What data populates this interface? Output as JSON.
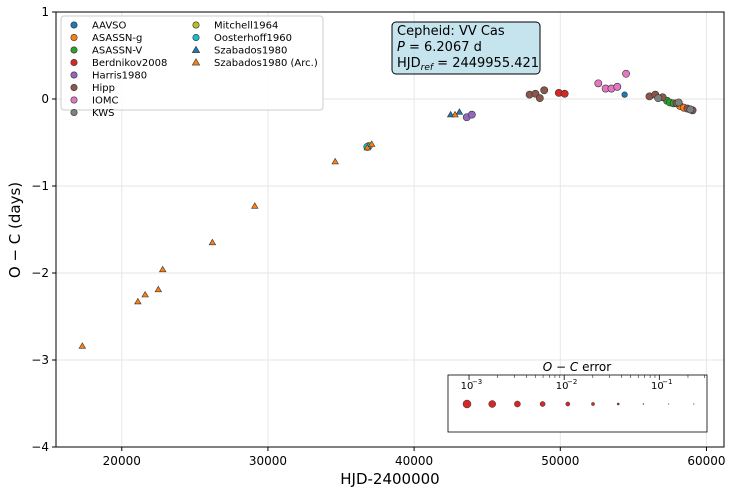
{
  "chart_data": {
    "type": "scatter",
    "xlabel": "HJD-2400000",
    "ylabel": "O − C (days)",
    "xlim": [
      15500,
      61200
    ],
    "ylim": [
      -4,
      1
    ],
    "x_ticks": [
      20000,
      30000,
      40000,
      50000,
      60000
    ],
    "y_ticks": [
      1,
      0,
      -1,
      -2,
      -3,
      -4
    ],
    "x_tick_labels": [
      "20000",
      "30000",
      "40000",
      "50000",
      "60000"
    ],
    "y_tick_labels": [
      "1",
      "0",
      "−1",
      "−2",
      "−3",
      "−4"
    ],
    "grid": true,
    "legend_position": "top-left",
    "info_box": {
      "line1": "Cepheid: VV Cas",
      "line2_prefix": "P",
      "line2_value": " = 6.2067 d",
      "line3_prefix": "HJD",
      "line3_sub": "ref",
      "line3_value": " = 2449955.421"
    },
    "error_legend": {
      "title_prefix": "O − C",
      "title_suffix": " error",
      "tick_labels": [
        "10",
        "10",
        "10"
      ],
      "tick_exponents": [
        "−3",
        "−2",
        "−1"
      ],
      "log_range": [
        -3.2,
        -0.52
      ],
      "tick_positions": [
        -3,
        -2,
        -1
      ],
      "sample_errors": [
        0.0007,
        0.0014,
        0.0028,
        0.0055,
        0.011,
        0.022,
        0.045,
        0.09,
        0.18,
        0.3
      ]
    },
    "series": [
      {
        "name": "AAVSO",
        "marker": "circle",
        "color": "#1f77b4",
        "points": [
          [
            54400,
            0.05
          ]
        ]
      },
      {
        "name": "ASASSN-g",
        "marker": "circle",
        "color": "#ff7f0e",
        "points": [
          [
            58200,
            -0.08
          ],
          [
            58450,
            -0.1
          ]
        ]
      },
      {
        "name": "ASASSN-V",
        "marker": "circle",
        "color": "#2ca02c",
        "points": [
          [
            57300,
            -0.02
          ],
          [
            57500,
            -0.04
          ],
          [
            57750,
            -0.05
          ]
        ]
      },
      {
        "name": "Berdnikov2008",
        "marker": "circle",
        "color": "#d62728",
        "points": [
          [
            49900,
            0.07
          ],
          [
            50300,
            0.06
          ]
        ]
      },
      {
        "name": "Harris1980",
        "marker": "circle",
        "color": "#9467bd",
        "points": [
          [
            43600,
            -0.21
          ],
          [
            43950,
            -0.18
          ]
        ]
      },
      {
        "name": "Hipp",
        "marker": "circle",
        "color": "#8c564b",
        "points": [
          [
            47900,
            0.05
          ],
          [
            48300,
            0.06
          ],
          [
            48600,
            0.01
          ],
          [
            48900,
            0.1
          ],
          [
            56100,
            0.03
          ],
          [
            56500,
            0.05
          ],
          [
            57000,
            0.02
          ],
          [
            57950,
            -0.05
          ],
          [
            58700,
            -0.11
          ],
          [
            59050,
            -0.13
          ]
        ]
      },
      {
        "name": "IOMC",
        "marker": "circle",
        "color": "#e377c2",
        "points": [
          [
            52600,
            0.18
          ],
          [
            53100,
            0.12
          ],
          [
            53500,
            0.12
          ],
          [
            53900,
            0.14
          ],
          [
            54500,
            0.29
          ]
        ]
      },
      {
        "name": "KWS",
        "marker": "circle",
        "color": "#7f7f7f",
        "points": [
          [
            56700,
            0.01
          ],
          [
            58100,
            -0.04
          ],
          [
            58900,
            -0.12
          ]
        ]
      },
      {
        "name": "Mitchell1964",
        "marker": "circle",
        "color": "#bcbd22",
        "points": [
          [
            36900,
            -0.54
          ]
        ]
      },
      {
        "name": "Oosterhoff1960",
        "marker": "circle",
        "color": "#17becf",
        "points": [
          [
            36800,
            -0.55
          ]
        ]
      },
      {
        "name": "Szabados1980",
        "marker": "triangle",
        "color": "#1f77b4",
        "points": [
          [
            43100,
            -0.15
          ],
          [
            42500,
            -0.18
          ]
        ]
      },
      {
        "name": "Szabados1980 (Arc.)",
        "marker": "triangle",
        "color": "#ff7f0e",
        "points": [
          [
            17300,
            -2.84
          ],
          [
            21100,
            -2.33
          ],
          [
            21600,
            -2.25
          ],
          [
            22500,
            -2.19
          ],
          [
            22800,
            -1.96
          ],
          [
            26200,
            -1.65
          ],
          [
            29100,
            -1.23
          ],
          [
            34600,
            -0.72
          ],
          [
            36800,
            -0.56
          ],
          [
            37100,
            -0.52
          ],
          [
            42800,
            -0.18
          ]
        ]
      }
    ]
  }
}
